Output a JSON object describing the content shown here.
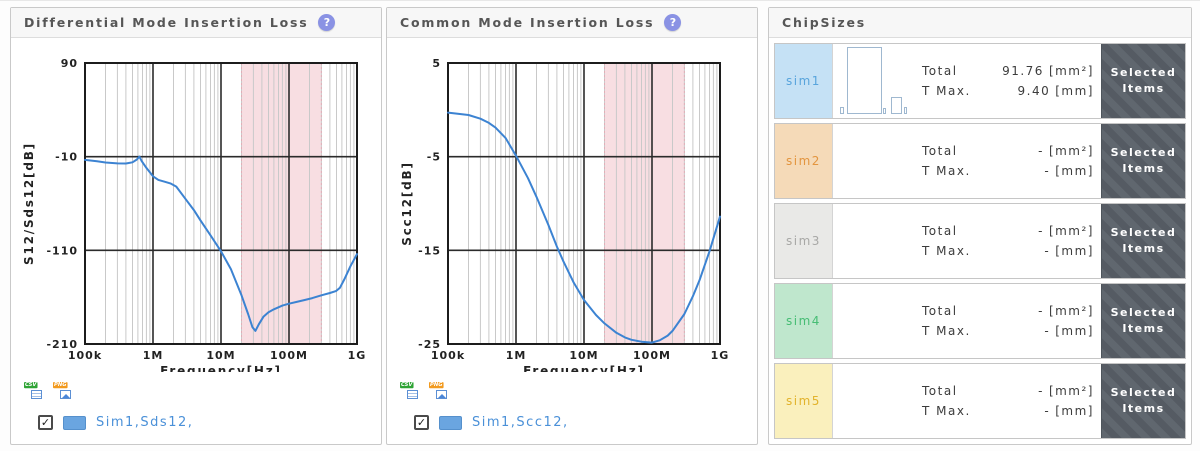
{
  "colors": {
    "curve_blue": "#3c83d2",
    "highlight_pink": "#f8dee2",
    "help_badge": "#8a92e4",
    "legend_text": "#4a90d8",
    "button_bg": "#5b626a"
  },
  "glyphs": {
    "check": "✓"
  },
  "export_icons": {
    "csv": "CSV",
    "png": "PNG"
  },
  "panels": {
    "differential": {
      "title": "Differential Mode Insertion Loss",
      "help_glyph": "?",
      "legend": {
        "checked": true,
        "label": "Sim1,Sds12,"
      }
    },
    "common": {
      "title": "Common Mode Insertion Loss",
      "help_glyph": "?",
      "legend": {
        "checked": true,
        "label": "Sim1,Scc12,"
      }
    },
    "chipsizes": {
      "title": "ChipSizes",
      "rows": [
        {
          "name": "sim1",
          "bg": "#c5e1f5",
          "fg": "#58a4dc",
          "total_label": "Total",
          "total_value": "91.76",
          "total_unit": "[mm²]",
          "tmax_label": "T Max.",
          "tmax_value": "9.40",
          "tmax_unit": "[mm]",
          "button_line1": "Selected",
          "button_line2": "Items",
          "mini_chart_bars": [
            [
              4,
              7,
              0
            ],
            [
              35,
              67,
              3
            ],
            [
              3,
              6,
              1
            ],
            [
              11,
              17,
              5
            ],
            [
              3,
              7,
              2
            ]
          ]
        },
        {
          "name": "sim2",
          "bg": "#f5dab8",
          "fg": "#e3953f",
          "total_label": "Total",
          "total_value": "-",
          "total_unit": "[mm²]",
          "tmax_label": "T Max.",
          "tmax_value": "-",
          "tmax_unit": "[mm]",
          "button_line1": "Selected",
          "button_line2": "Items"
        },
        {
          "name": "sim3",
          "bg": "#e9e9e7",
          "fg": "#a8a8a6",
          "total_label": "Total",
          "total_value": "-",
          "total_unit": "[mm²]",
          "tmax_label": "T Max.",
          "tmax_value": "-",
          "tmax_unit": "[mm]",
          "button_line1": "Selected",
          "button_line2": "Items"
        },
        {
          "name": "sim4",
          "bg": "#bfe7cd",
          "fg": "#46bd74",
          "total_label": "Total",
          "total_value": "-",
          "total_unit": "[mm²]",
          "tmax_label": "T Max.",
          "tmax_value": "-",
          "tmax_unit": "[mm]",
          "button_line1": "Selected",
          "button_line2": "Items"
        },
        {
          "name": "sim5",
          "bg": "#faf0bd",
          "fg": "#e2b32c",
          "total_label": "Total",
          "total_value": "-",
          "total_unit": "[mm²]",
          "tmax_label": "T Max.",
          "tmax_value": "-",
          "tmax_unit": "[mm]",
          "button_line1": "Selected",
          "button_line2": "Items"
        }
      ]
    }
  },
  "chart_data": [
    {
      "id": "differential",
      "type": "line",
      "title": "Differential Mode Insertion Loss",
      "xlabel": "Frequency[Hz]",
      "ylabel": "S12/Sds12[dB]",
      "x_scale": "log",
      "xlim": [
        100000,
        1000000000
      ],
      "ylim": [
        -210,
        90
      ],
      "grid": "x-log-minor, major-both",
      "legend_position": "below",
      "x_ticks": [
        {
          "value": 100000,
          "label": "100k"
        },
        {
          "value": 1000000,
          "label": "1M"
        },
        {
          "value": 10000000,
          "label": "10M"
        },
        {
          "value": 100000000,
          "label": "100M"
        },
        {
          "value": 1000000000,
          "label": "1G"
        }
      ],
      "y_ticks": [
        {
          "value": 90,
          "label": "90"
        },
        {
          "value": -10,
          "label": "-10"
        },
        {
          "value": -110,
          "label": "-110"
        },
        {
          "value": -210,
          "label": "-210"
        }
      ],
      "highlight_band": {
        "from": 20000000,
        "to": 300000000,
        "color": "#f8dee2",
        "edge_color": "#e2aeb8"
      },
      "series": [
        {
          "name": "Sim1,Sds12",
          "color": "#3c83d2",
          "points": [
            [
              100000,
              -13.5
            ],
            [
              150000,
              -15
            ],
            [
              200000,
              -16.2
            ],
            [
              300000,
              -17.2
            ],
            [
              400000,
              -17.3
            ],
            [
              500000,
              -16
            ],
            [
              580000,
              -13
            ],
            [
              630000,
              -9.8
            ],
            [
              680000,
              -14.5
            ],
            [
              800000,
              -22
            ],
            [
              1000000,
              -31
            ],
            [
              1200000,
              -34.8
            ],
            [
              1500000,
              -36.8
            ],
            [
              1800000,
              -38.5
            ],
            [
              2200000,
              -42
            ],
            [
              3000000,
              -55
            ],
            [
              4000000,
              -67
            ],
            [
              5000000,
              -78
            ],
            [
              7000000,
              -94
            ],
            [
              10000000,
              -111
            ],
            [
              14000000,
              -130
            ],
            [
              20000000,
              -158
            ],
            [
              25000000,
              -178
            ],
            [
              29000000,
              -192
            ],
            [
              32000000,
              -196
            ],
            [
              36000000,
              -189
            ],
            [
              42000000,
              -181
            ],
            [
              50000000,
              -176
            ],
            [
              60000000,
              -173
            ],
            [
              80000000,
              -169
            ],
            [
              100000000,
              -167
            ],
            [
              130000000,
              -165
            ],
            [
              170000000,
              -163
            ],
            [
              220000000,
              -161
            ],
            [
              300000000,
              -158
            ],
            [
              400000000,
              -155.5
            ],
            [
              490000000,
              -153.5
            ],
            [
              560000000,
              -150
            ],
            [
              650000000,
              -141
            ],
            [
              800000000,
              -127
            ],
            [
              1000000000,
              -114
            ]
          ]
        }
      ]
    },
    {
      "id": "common",
      "type": "line",
      "title": "Common Mode Insertion Loss",
      "xlabel": "Frequency[Hz]",
      "ylabel": "Scc12[dB]",
      "x_scale": "log",
      "xlim": [
        100000,
        1000000000
      ],
      "ylim": [
        -25,
        5
      ],
      "grid": "x-log-minor, major-both",
      "legend_position": "below",
      "x_ticks": [
        {
          "value": 100000,
          "label": "100k"
        },
        {
          "value": 1000000,
          "label": "1M"
        },
        {
          "value": 10000000,
          "label": "10M"
        },
        {
          "value": 100000000,
          "label": "100M"
        },
        {
          "value": 1000000000,
          "label": "1G"
        }
      ],
      "y_ticks": [
        {
          "value": 5,
          "label": "5"
        },
        {
          "value": -5,
          "label": "-5"
        },
        {
          "value": -15,
          "label": "-15"
        },
        {
          "value": -25,
          "label": "-25"
        }
      ],
      "highlight_band": {
        "from": 20000000,
        "to": 300000000,
        "color": "#f8dee2",
        "edge_color": "#e2aeb8"
      },
      "series": [
        {
          "name": "Sim1,Scc12",
          "color": "#3c83d2",
          "points": [
            [
              100000,
              -0.3
            ],
            [
              200000,
              -0.55
            ],
            [
              300000,
              -0.95
            ],
            [
              400000,
              -1.4
            ],
            [
              500000,
              -1.9
            ],
            [
              700000,
              -3.0
            ],
            [
              1000000,
              -4.9
            ],
            [
              1500000,
              -7.3
            ],
            [
              2000000,
              -9.3
            ],
            [
              3000000,
              -12.3
            ],
            [
              4000000,
              -14.6
            ],
            [
              5000000,
              -16.2
            ],
            [
              7000000,
              -18.4
            ],
            [
              10000000,
              -20.3
            ],
            [
              15000000,
              -21.9
            ],
            [
              20000000,
              -22.8
            ],
            [
              30000000,
              -23.8
            ],
            [
              40000000,
              -24.3
            ],
            [
              50000000,
              -24.55
            ],
            [
              70000000,
              -24.75
            ],
            [
              100000000,
              -24.85
            ],
            [
              130000000,
              -24.6
            ],
            [
              170000000,
              -24.1
            ],
            [
              200000000,
              -23.6
            ],
            [
              300000000,
              -21.8
            ],
            [
              400000000,
              -19.9
            ],
            [
              500000000,
              -18.2
            ],
            [
              700000000,
              -15.1
            ],
            [
              1000000000,
              -11.4
            ]
          ]
        }
      ]
    }
  ]
}
